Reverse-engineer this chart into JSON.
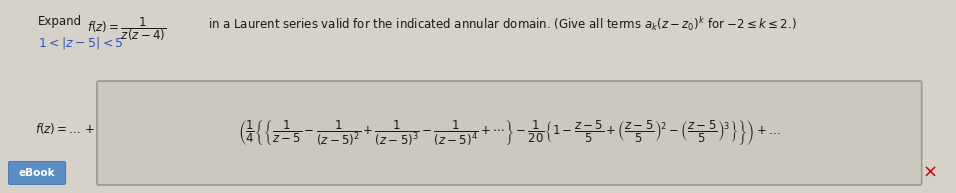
{
  "bg_color": "#d6d2ca",
  "text_color": "#1a1a1a",
  "title_line": "Expand $f(z) = \\dfrac{1}{z(z-4)}$  in a Laurent series valid for the indicated annular domain. (Give all terms $a_k(z-z_0)^k$ for $-2 \\leq k \\leq 2$.)",
  "domain_text": "$1 < |z-5| < 5$",
  "answer_label": "$f(z) = \\ldots\\, +$",
  "formula": "$\\left(\\dfrac{1}{4}\\left\\{\\left\\{\\dfrac{1}{z-5} - \\dfrac{1}{(z-5)^2} + \\dfrac{1}{(z-5)^3} - \\dfrac{1}{(z-5)^4} +\\cdots\\right\\} - \\dfrac{1}{20}\\left\\{1 - \\dfrac{z-5}{5} + \\left(\\dfrac{z-5}{5}\\right)^2 - \\left(\\dfrac{z-5}{5}\\right)^3\\right\\}\\right\\}\\right) + \\ldots$",
  "ebook_label": "eBook",
  "ebook_bg": "#5b8ec4",
  "ebook_text": "#ffffff",
  "box_edge_color": "#999990",
  "box_face_color": "#ccc8bf",
  "x_color": "#cc0000",
  "domain_color": "#3355bb",
  "figsize": [
    9.56,
    1.93
  ],
  "dpi": 100
}
